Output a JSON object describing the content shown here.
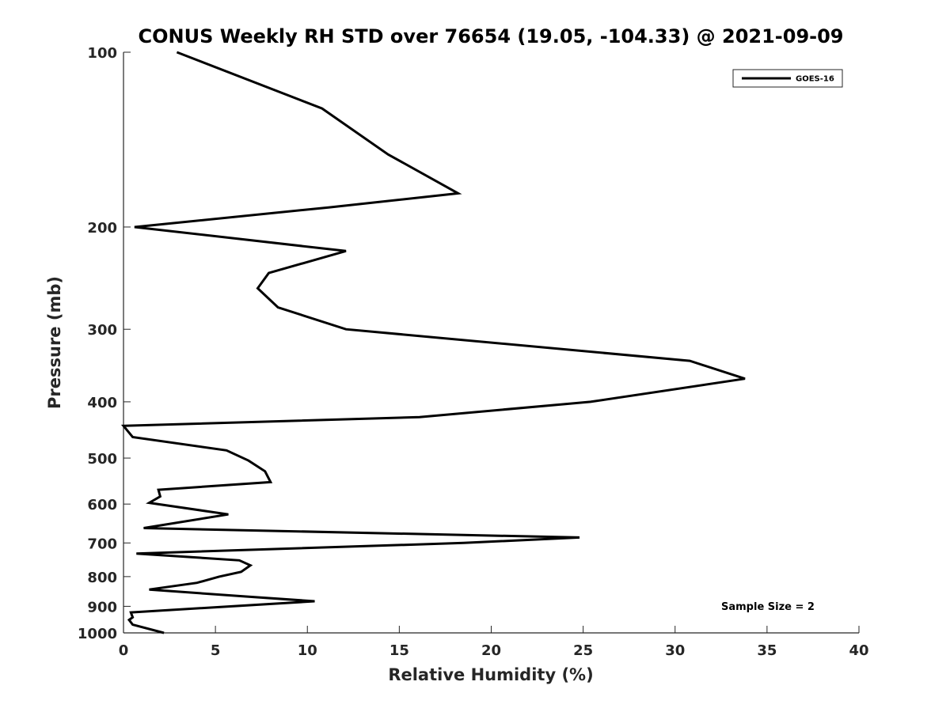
{
  "chart_data": {
    "type": "line",
    "title": "CONUS Weekly RH STD over 76654 (19.05, -104.33) @ 2021-09-09",
    "xlabel": "Relative Humidity (%)",
    "ylabel": "Pressure (mb)",
    "xlim": [
      0,
      40
    ],
    "ylim": [
      100,
      1000
    ],
    "y_scale": "log",
    "y_reversed": true,
    "grid": false,
    "legend_position": "top-right",
    "x_ticks": [
      0,
      5,
      10,
      15,
      20,
      25,
      30,
      35,
      40
    ],
    "y_ticks": [
      100,
      200,
      300,
      400,
      500,
      600,
      700,
      800,
      900,
      1000
    ],
    "series": [
      {
        "name": "GOES-16",
        "color": "#000000",
        "x": [
          2.9,
          10.8,
          14.4,
          18.2,
          11.2,
          0.6,
          12.1,
          7.9,
          7.3,
          8.4,
          12.1,
          30.8,
          33.8,
          25.4,
          16.1,
          0.0,
          0.5,
          5.6,
          6.8,
          7.7,
          8.0,
          1.9,
          2.0,
          1.4,
          5.7,
          1.1,
          24.8,
          18.5,
          0.7,
          6.3,
          6.9,
          6.4,
          5.2,
          4.0,
          1.4,
          6.5,
          10.4,
          0.4,
          0.5,
          0.3,
          0.5,
          2.2
        ],
        "y": [
          100,
          125,
          150,
          175,
          185,
          200,
          220,
          240,
          255,
          275,
          300,
          340,
          365,
          400,
          425,
          440,
          460,
          485,
          505,
          527,
          550,
          567,
          582,
          597,
          625,
          660,
          685,
          700,
          730,
          750,
          765,
          785,
          800,
          820,
          842,
          865,
          882,
          922,
          940,
          950,
          968,
          1000
        ]
      }
    ],
    "legend": [
      "GOES-16"
    ],
    "annotation": "Sample Size = 2"
  }
}
